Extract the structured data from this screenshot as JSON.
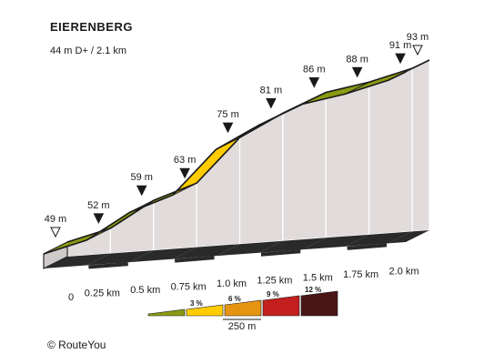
{
  "header": {
    "title": "EIERENBERG",
    "subtitle": "44 m D+ / 2.1 km"
  },
  "footer": {
    "copyright": "© RouteYou"
  },
  "colors": {
    "grade_0_3": "#8a9a12",
    "grade_3_6": "#ffcc00",
    "grade_6_9": "#e59412",
    "grade_9_12": "#c41f1f",
    "grade_12_plus": "#4a1515",
    "side_face": "#e1dcdb",
    "top_face": "#d7d2d1"
  },
  "chart_data": {
    "type": "area",
    "title": "EIERENBERG",
    "subtitle": "44 m D+ / 2.1 km",
    "x_unit": "km",
    "y_unit": "m",
    "distance_km": [
      0,
      0.25,
      0.5,
      0.75,
      1.0,
      1.25,
      1.5,
      1.75,
      2.0,
      2.1
    ],
    "elevation_m": [
      49,
      52,
      59,
      63,
      75,
      81,
      86,
      88,
      91,
      93
    ],
    "elevation_labels": [
      "49 m",
      "52 m",
      "59 m",
      "63 m",
      "75 m",
      "81 m",
      "86 m",
      "88 m",
      "91 m",
      "93 m"
    ],
    "x_tick_labels": [
      "0",
      "0.25 km",
      "0.5 km",
      "0.75 km",
      "1.0 km",
      "1.25 km",
      "1.5 km",
      "1.75 km",
      "2.0 km"
    ],
    "segment_colors": [
      "#8a9a12",
      "#8a9a12",
      "#8a9a12",
      "#ffcc00",
      "#8a9a12",
      "#8a9a12",
      "#8a9a12",
      "#8a9a12",
      "#8a9a12"
    ],
    "endpoints": [
      "start",
      "end"
    ],
    "legend": {
      "items": [
        {
          "label": "",
          "color": "#8a9a12"
        },
        {
          "label": "3 %",
          "color": "#ffcc00"
        },
        {
          "label": "6 %",
          "color": "#e59412"
        },
        {
          "label": "9 %",
          "color": "#c41f1f"
        },
        {
          "label": "12 %",
          "color": "#4a1515"
        }
      ],
      "scale_label": "250 m"
    }
  }
}
